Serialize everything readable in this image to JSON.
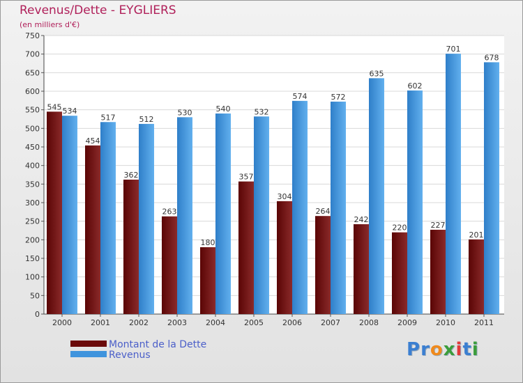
{
  "header": {
    "title": "Revenus/Dette - EYGLIERS",
    "subtitle": "(en milliers d'€)"
  },
  "legend": {
    "items": [
      {
        "label": "Montant de la Dette",
        "color": "#6b0a0a"
      },
      {
        "label": "Revenus",
        "color": "#3f94dd"
      }
    ]
  },
  "logo": {
    "text": "Proxiti",
    "letter_colors": [
      "#3b7fd1",
      "#3b7fd1",
      "#f08a1c",
      "#3b9d3b",
      "#e23b3b",
      "#3b7fd1",
      "#3b9d3b"
    ]
  },
  "chart_data": {
    "type": "bar",
    "categories": [
      "2000",
      "2001",
      "2002",
      "2003",
      "2004",
      "2005",
      "2006",
      "2007",
      "2008",
      "2009",
      "2010",
      "2011"
    ],
    "series": [
      {
        "name": "Montant de la Dette",
        "values": [
          545,
          454,
          362,
          263,
          180,
          357,
          304,
          264,
          242,
          220,
          227,
          201
        ],
        "color": "#6b0a0a"
      },
      {
        "name": "Revenus",
        "values": [
          534,
          517,
          512,
          530,
          540,
          532,
          574,
          572,
          635,
          602,
          701,
          678
        ],
        "color": "#3f94dd"
      }
    ],
    "ylim": [
      0,
      750
    ],
    "yticks": [
      0,
      50,
      100,
      150,
      200,
      250,
      300,
      350,
      400,
      450,
      500,
      550,
      600,
      650,
      700,
      750
    ],
    "grid": true,
    "legend_position": "bottom-left"
  }
}
